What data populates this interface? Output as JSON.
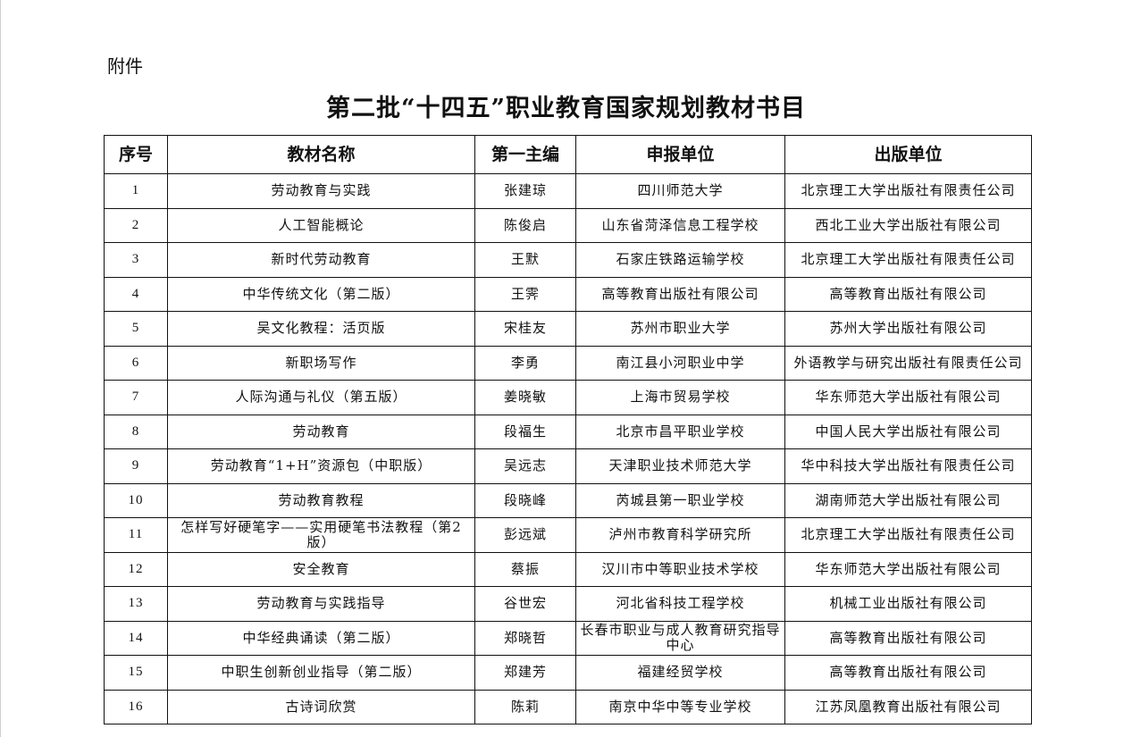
{
  "attachment_label": "附件",
  "title": "第二批“十四五”职业教育国家规划教材书目",
  "table": {
    "headers": [
      "序号",
      "教材名称",
      "第一主编",
      "申报单位",
      "出版单位"
    ],
    "rows": [
      [
        "1",
        "劳动教育与实践",
        "张建琼",
        "四川师范大学",
        "北京理工大学出版社有限责任公司"
      ],
      [
        "2",
        "人工智能概论",
        "陈俊启",
        "山东省菏泽信息工程学校",
        "西北工业大学出版社有限公司"
      ],
      [
        "3",
        "新时代劳动教育",
        "王默",
        "石家庄铁路运输学校",
        "北京理工大学出版社有限责任公司"
      ],
      [
        "4",
        "中华传统文化（第二版）",
        "王霁",
        "高等教育出版社有限公司",
        "高等教育出版社有限公司"
      ],
      [
        "5",
        "吴文化教程：活页版",
        "宋桂友",
        "苏州市职业大学",
        "苏州大学出版社有限公司"
      ],
      [
        "6",
        "新职场写作",
        "李勇",
        "南江县小河职业中学",
        "外语教学与研究出版社有限责任公司"
      ],
      [
        "7",
        "人际沟通与礼仪（第五版）",
        "姜晓敏",
        "上海市贸易学校",
        "华东师范大学出版社有限公司"
      ],
      [
        "8",
        "劳动教育",
        "段福生",
        "北京市昌平职业学校",
        "中国人民大学出版社有限公司"
      ],
      [
        "9",
        "劳动教育“1+H”资源包（中职版）",
        "吴远志",
        "天津职业技术师范大学",
        "华中科技大学出版社有限责任公司"
      ],
      [
        "10",
        "劳动教育教程",
        "段晓峰",
        "芮城县第一职业学校",
        "湖南师范大学出版社有限公司"
      ],
      [
        "11",
        "怎样写好硬笔字——实用硬笔书法教程（第2版）",
        "彭远斌",
        "泸州市教育科学研究所",
        "北京理工大学出版社有限责任公司"
      ],
      [
        "12",
        "安全教育",
        "蔡振",
        "汉川市中等职业技术学校",
        "华东师范大学出版社有限公司"
      ],
      [
        "13",
        "劳动教育与实践指导",
        "谷世宏",
        "河北省科技工程学校",
        "机械工业出版社有限公司"
      ],
      [
        "14",
        "中华经典诵读（第二版）",
        "郑晓哲",
        "长春市职业与成人教育研究指导中心",
        "高等教育出版社有限公司"
      ],
      [
        "15",
        "中职生创新创业指导（第二版）",
        "郑建芳",
        "福建经贸学校",
        "高等教育出版社有限公司"
      ],
      [
        "16",
        "古诗词欣赏",
        "陈莉",
        "南京中华中等专业学校",
        "江苏凤凰教育出版社有限公司"
      ]
    ]
  }
}
